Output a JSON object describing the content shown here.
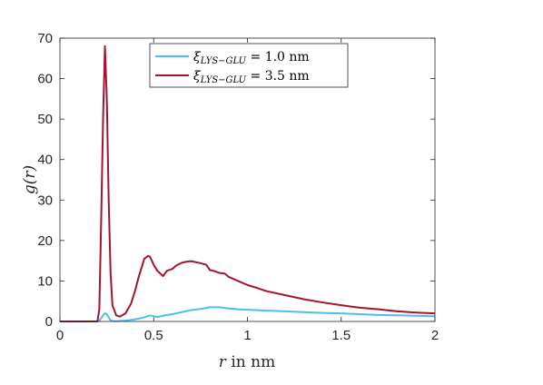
{
  "chart_data": {
    "type": "line",
    "xlabel": "r in nm",
    "ylabel": "g(r)",
    "xlim": [
      0,
      2
    ],
    "ylim": [
      0,
      70
    ],
    "xticks": [
      0,
      0.5,
      1,
      1.5,
      2
    ],
    "xtick_labels": [
      "0",
      "0.5",
      "1",
      "1.5",
      "2"
    ],
    "yticks": [
      0,
      10,
      20,
      30,
      40,
      50,
      60,
      70
    ],
    "ytick_labels": [
      "0",
      "10",
      "20",
      "30",
      "40",
      "50",
      "60",
      "70"
    ],
    "legend_position": "top",
    "series": [
      {
        "name": "ξLYS−GLU = 1.0 nm",
        "name_symbol": "ξ",
        "name_subscript": "LYS−GLU",
        "name_value": " = 1.0 nm",
        "color": "#4dbeee",
        "x": [
          0,
          0.2,
          0.21,
          0.22,
          0.23,
          0.24,
          0.25,
          0.26,
          0.27,
          0.28,
          0.3,
          0.35,
          0.4,
          0.45,
          0.48,
          0.5,
          0.52,
          0.55,
          0.6,
          0.65,
          0.7,
          0.75,
          0.78,
          0.8,
          0.85,
          0.9,
          0.95,
          1.0,
          1.1,
          1.2,
          1.3,
          1.4,
          1.5,
          1.6,
          1.7,
          1.8,
          1.9,
          2.0
        ],
        "y": [
          0,
          0,
          0.2,
          0.8,
          1.5,
          2.0,
          1.8,
          1.0,
          0.3,
          0.1,
          0.05,
          0.2,
          0.5,
          1.0,
          1.5,
          1.3,
          1.1,
          1.4,
          1.8,
          2.3,
          2.8,
          3.1,
          3.3,
          3.5,
          3.5,
          3.2,
          3.0,
          2.9,
          2.7,
          2.5,
          2.3,
          2.1,
          2.0,
          1.8,
          1.6,
          1.5,
          1.4,
          1.3
        ]
      },
      {
        "name": "ξLYS−GLU = 3.5 nm",
        "name_symbol": "ξ",
        "name_subscript": "LYS−GLU",
        "name_value": " = 3.5 nm",
        "color": "#a2142f",
        "x": [
          0,
          0.2,
          0.21,
          0.22,
          0.23,
          0.24,
          0.25,
          0.26,
          0.27,
          0.28,
          0.3,
          0.32,
          0.35,
          0.38,
          0.4,
          0.42,
          0.45,
          0.47,
          0.48,
          0.5,
          0.52,
          0.55,
          0.57,
          0.6,
          0.62,
          0.65,
          0.68,
          0.7,
          0.72,
          0.75,
          0.78,
          0.8,
          0.82,
          0.85,
          0.88,
          0.9,
          0.95,
          1.0,
          1.05,
          1.1,
          1.2,
          1.3,
          1.4,
          1.5,
          1.6,
          1.7,
          1.8,
          1.9,
          2.0
        ],
        "y": [
          0,
          0,
          3,
          25,
          50,
          68,
          55,
          30,
          12,
          4,
          1.5,
          1.2,
          2.0,
          4.5,
          7.5,
          11,
          15.5,
          16.2,
          16.0,
          14.0,
          12.5,
          11.2,
          12.5,
          13.0,
          13.8,
          14.5,
          14.8,
          14.9,
          14.7,
          14.4,
          14.0,
          12.7,
          12.5,
          12.0,
          11.8,
          11.0,
          10.0,
          9.0,
          8.3,
          7.5,
          6.5,
          5.5,
          4.7,
          4.0,
          3.4,
          3.0,
          2.5,
          2.2,
          2.0
        ]
      }
    ]
  }
}
